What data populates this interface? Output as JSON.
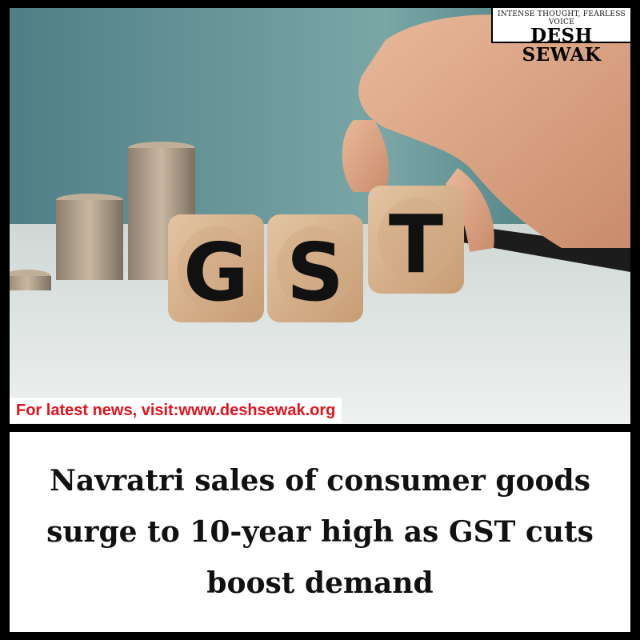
{
  "brand": {
    "tagline": "INTENSE THOUGHT, FEARLESS VOICE",
    "name": "DESH SEWAK"
  },
  "promo": {
    "text": "For latest news, visit:www.deshsewak.org"
  },
  "photo": {
    "blocks": [
      "G",
      "S",
      "T"
    ]
  },
  "headline": {
    "lines": [
      "Navratri sales of consumer goods",
      "surge to 10-year high as GST cuts",
      "boost demand"
    ]
  }
}
